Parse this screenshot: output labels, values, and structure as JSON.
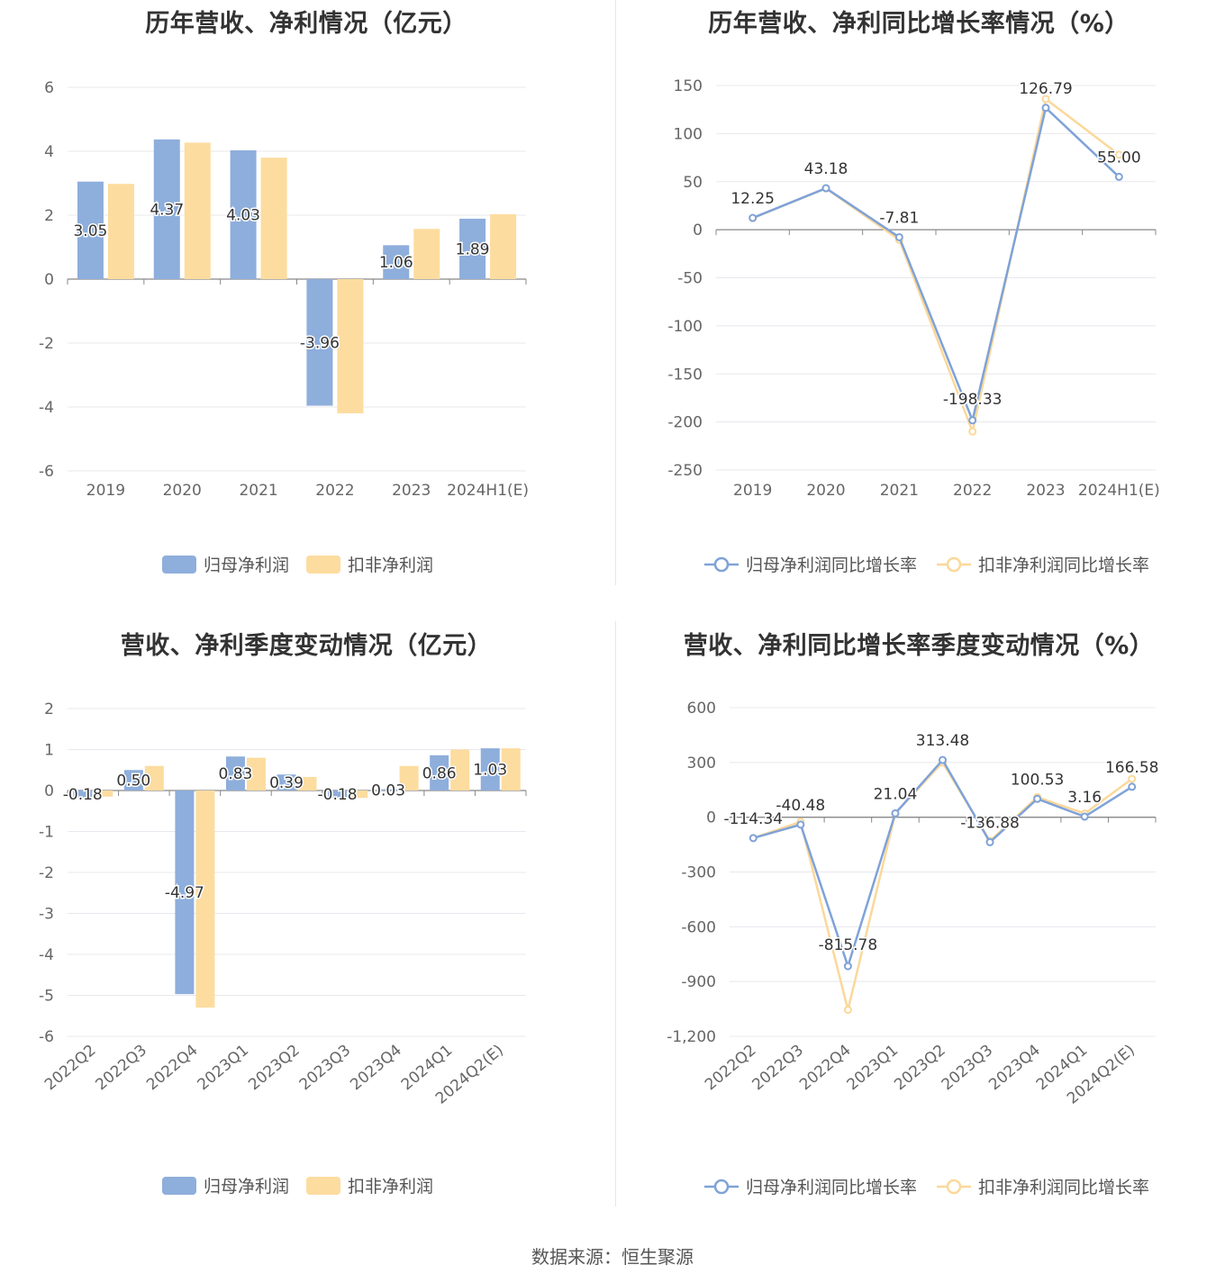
{
  "source": "数据来源：恒生聚源",
  "colors": {
    "primary": "#8eaedc",
    "secondary": "#fddc9f",
    "primary_line": "#7fa2d8",
    "secondary_line": "#fbd89a"
  },
  "charts": [
    {
      "id": "annual-profit",
      "title": "历年营收、净利情况（亿元）",
      "type": "bar",
      "categories": [
        "2019",
        "2020",
        "2021",
        "2022",
        "2023",
        "2024H1(E)"
      ],
      "ylim": [
        -6,
        6
      ],
      "yticks": [
        6,
        4,
        2,
        0,
        -2,
        -4,
        -6
      ],
      "ytick_labels": [
        "6",
        "4",
        "2",
        "0",
        "-2",
        "-4",
        "-6"
      ],
      "series": [
        {
          "name": "归母净利润",
          "values": [
            3.05,
            4.37,
            4.03,
            -3.96,
            1.06,
            1.89
          ],
          "labels": [
            "3.05",
            "4.37",
            "4.03",
            "-3.96",
            "1.06",
            "1.89"
          ]
        },
        {
          "name": "扣非净利润",
          "values": [
            2.98,
            4.27,
            3.8,
            -4.2,
            1.57,
            2.03
          ],
          "labels": []
        }
      ]
    },
    {
      "id": "annual-growth",
      "title": "历年营收、净利同比增长率情况（%）",
      "type": "line",
      "categories": [
        "2019",
        "2020",
        "2021",
        "2022",
        "2023",
        "2024H1(E)"
      ],
      "ylim": [
        -250,
        150
      ],
      "yticks": [
        150,
        100,
        50,
        0,
        -50,
        -100,
        -150,
        -200,
        -250
      ],
      "ytick_labels": [
        "150",
        "100",
        "50",
        "0",
        "-50",
        "-100",
        "-150",
        "-200",
        "-250"
      ],
      "series": [
        {
          "name": "归母净利润同比增长率",
          "values": [
            12.25,
            43.18,
            -7.81,
            -198.33,
            126.79,
            55.0
          ],
          "labels": [
            "12.25",
            "43.18",
            "-7.81",
            "-198.33",
            "126.79",
            "55.00"
          ]
        },
        {
          "name": "扣非净利润同比增长率",
          "values": [
            12.0,
            43.0,
            -10.5,
            -210.0,
            136.0,
            78.0
          ],
          "labels": []
        }
      ]
    },
    {
      "id": "quarterly-profit",
      "title": "营收、净利季度变动情况（亿元）",
      "type": "bar",
      "categories": [
        "2022Q2",
        "2022Q3",
        "2022Q4",
        "2023Q1",
        "2023Q2",
        "2023Q3",
        "2023Q4",
        "2024Q1",
        "2024Q2(E)"
      ],
      "ylim": [
        -6,
        2
      ],
      "yticks": [
        2,
        1,
        0,
        -1,
        -2,
        -3,
        -4,
        -5,
        -6
      ],
      "ytick_labels": [
        "2",
        "1",
        "0",
        "-1",
        "-2",
        "-3",
        "-4",
        "-5",
        "-6"
      ],
      "series": [
        {
          "name": "归母净利润",
          "values": [
            -0.18,
            0.5,
            -4.97,
            0.83,
            0.39,
            -0.18,
            0.03,
            0.86,
            1.03
          ],
          "labels": [
            "-0.18",
            "0.50",
            "-4.97",
            "0.83",
            "0.39",
            "-0.18",
            "0.03",
            "0.86",
            "1.03"
          ]
        },
        {
          "name": "扣非净利润",
          "values": [
            -0.15,
            0.6,
            -5.3,
            0.8,
            0.33,
            -0.18,
            0.6,
            1.0,
            1.03
          ],
          "labels": []
        }
      ]
    },
    {
      "id": "quarterly-growth",
      "title": "营收、净利同比增长率季度变动情况（%）",
      "type": "line",
      "categories": [
        "2022Q2",
        "2022Q3",
        "2022Q4",
        "2023Q1",
        "2023Q2",
        "2023Q3",
        "2023Q4",
        "2024Q1",
        "2024Q2(E)"
      ],
      "ylim": [
        -1200,
        600
      ],
      "yticks": [
        600,
        300,
        0,
        -300,
        -600,
        -900,
        -1200
      ],
      "ytick_labels": [
        "600",
        "300",
        "0",
        "-300",
        "-600",
        "-900",
        "-1,200"
      ],
      "series": [
        {
          "name": "归母净利润同比增长率",
          "values": [
            -114.34,
            -40.48,
            -815.78,
            21.04,
            313.48,
            -136.88,
            100.53,
            3.16,
            166.58
          ],
          "labels": [
            "-114.34",
            "-40.48",
            "-815.78",
            "21.04",
            "313.48",
            "-136.88",
            "100.53",
            "3.16",
            "166.58"
          ]
        },
        {
          "name": "扣非净利润同比增长率",
          "values": [
            -114.0,
            -25.0,
            -1055.0,
            21.0,
            300.0,
            -130.0,
            110.0,
            20.0,
            210.0
          ],
          "labels": []
        }
      ]
    }
  ]
}
